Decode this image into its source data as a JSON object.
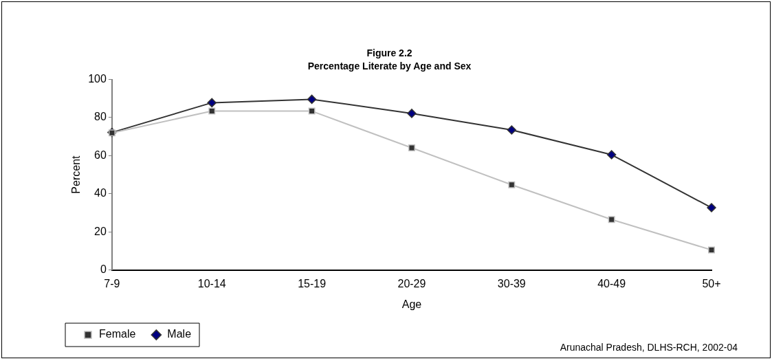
{
  "chart_data": {
    "type": "line",
    "title": "Figure 2.2",
    "subtitle": "Percentage Literate by Age and Sex",
    "xlabel": "Age",
    "ylabel": "Percent",
    "categories": [
      "7-9",
      "10-14",
      "15-19",
      "20-29",
      "30-39",
      "40-49",
      "50+"
    ],
    "series": [
      {
        "name": "Male",
        "color": "#333333",
        "marker": "diamond",
        "values": [
          72.2,
          87.8,
          89.6,
          82.2,
          73.5,
          60.5,
          32.7
        ]
      },
      {
        "name": "Female",
        "color": "#c0c0c0",
        "marker": "square",
        "values": [
          72,
          83.4,
          83.4,
          64.1,
          44.7,
          26.5,
          10.5
        ]
      }
    ],
    "ylim": [
      0,
      100
    ],
    "yticks": [
      0,
      20,
      40,
      60,
      80,
      100
    ],
    "grid": false,
    "legend": "bottom left",
    "line_style": "solid",
    "annotations": [
      "Arunachal Pradesh, DLHS-RCH, 2002-04"
    ]
  }
}
